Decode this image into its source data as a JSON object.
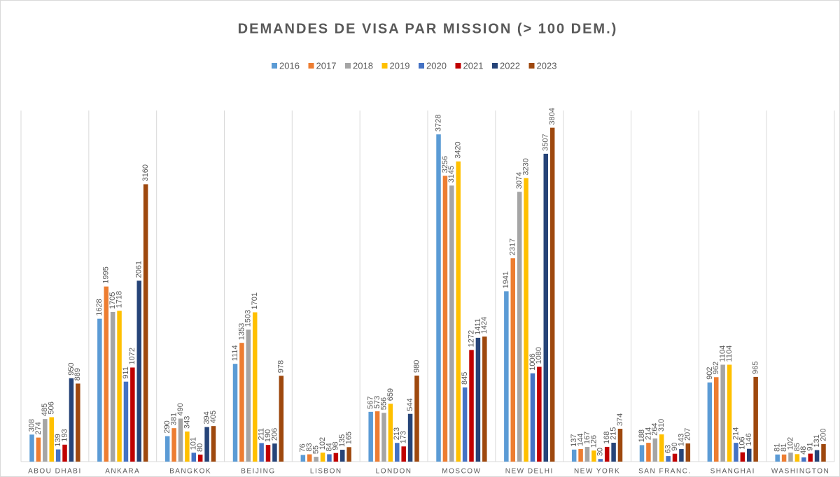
{
  "chart_data": {
    "type": "bar",
    "title": "DEMANDES DE VISA PAR MISSION (> 100 DEM.)",
    "categories": [
      "ABOU DHABI",
      "ANKARA",
      "BANGKOK",
      "BEIJING",
      "LISBON",
      "LONDON",
      "MOSCOW",
      "NEW DELHI",
      "NEW YORK",
      "SAN FRANC.",
      "SHANGHAI",
      "WASHINGTON"
    ],
    "series": [
      {
        "name": "2016",
        "color": "#5b9bd5",
        "values": [
          308,
          1628,
          290,
          1114,
          76,
          567,
          3728,
          1941,
          137,
          188,
          902,
          81
        ]
      },
      {
        "name": "2017",
        "color": "#ed7d31",
        "values": [
          274,
          1995,
          381,
          1353,
          83,
          573,
          3256,
          2317,
          144,
          214,
          962,
          81
        ]
      },
      {
        "name": "2018",
        "color": "#a5a5a5",
        "values": [
          485,
          1705,
          490,
          1503,
          55,
          556,
          3145,
          3074,
          167,
          264,
          1104,
          102
        ]
      },
      {
        "name": "2019",
        "color": "#ffc000",
        "values": [
          506,
          1718,
          343,
          1701,
          102,
          659,
          3420,
          3230,
          126,
          310,
          1104,
          85
        ]
      },
      {
        "name": "2020",
        "color": "#4472c4",
        "values": [
          139,
          911,
          101,
          211,
          84,
          213,
          845,
          1006,
          30,
          63,
          214,
          48
        ]
      },
      {
        "name": "2021",
        "color": "#c00000",
        "values": [
          193,
          1072,
          80,
          190,
          98,
          173,
          1272,
          1080,
          168,
          90,
          106,
          91
        ]
      },
      {
        "name": "2022",
        "color": "#264478",
        "values": [
          950,
          2061,
          394,
          206,
          135,
          544,
          1411,
          3507,
          215,
          143,
          146,
          131
        ]
      },
      {
        "name": "2023",
        "color": "#9e480e",
        "values": [
          889,
          3160,
          405,
          978,
          165,
          980,
          1424,
          3804,
          374,
          207,
          965,
          200
        ]
      }
    ],
    "ylim": [
      0,
      4000
    ]
  }
}
